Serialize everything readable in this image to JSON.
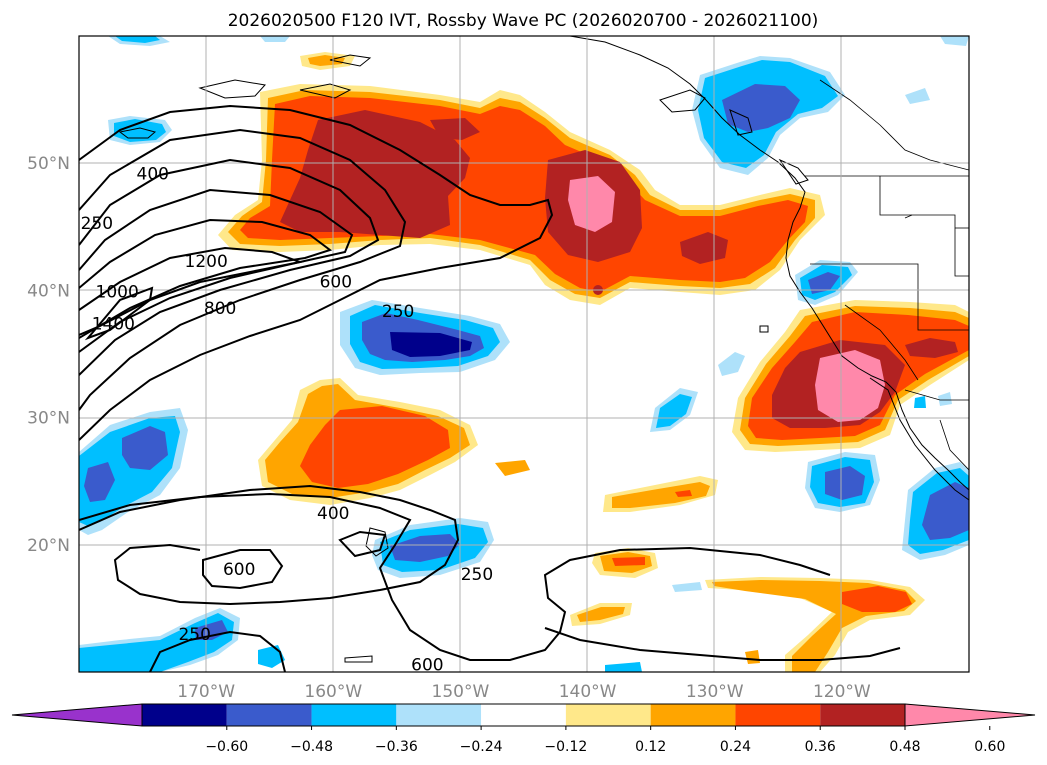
{
  "title": "2026020500 F120 IVT, Rossby Wave PC (2026020700 - 2026021100)",
  "map": {
    "lon_range": [
      -180,
      -110
    ],
    "lat_range": [
      10,
      60
    ],
    "lon_ticks": [
      {
        "lon": -170,
        "label": "170°W"
      },
      {
        "lon": -160,
        "label": "160°W"
      },
      {
        "lon": -150,
        "label": "150°W"
      },
      {
        "lon": -140,
        "label": "140°W"
      },
      {
        "lon": -130,
        "label": "130°W"
      },
      {
        "lon": -120,
        "label": "120°W"
      }
    ],
    "lat_ticks": [
      {
        "lat": 50,
        "label": "50°N"
      },
      {
        "lat": 40,
        "label": "40°N"
      },
      {
        "lat": 30,
        "label": "30°N"
      },
      {
        "lat": 20,
        "label": "20°N"
      }
    ],
    "grid": true
  },
  "contour_labels": [
    {
      "text": "250",
      "lon": -178.6,
      "lat": 45.3
    },
    {
      "text": "400",
      "lon": -174.2,
      "lat": 49.2
    },
    {
      "text": "1200",
      "lon": -170.0,
      "lat": 42.3
    },
    {
      "text": "1000",
      "lon": -177.0,
      "lat": 39.9
    },
    {
      "text": "1400",
      "lon": -177.3,
      "lat": 37.4
    },
    {
      "text": "800",
      "lon": -168.9,
      "lat": 38.6
    },
    {
      "text": "600",
      "lon": -159.8,
      "lat": 40.7
    },
    {
      "text": "250",
      "lon": -154.9,
      "lat": 38.4
    },
    {
      "text": "400",
      "lon": -160.0,
      "lat": 22.5
    },
    {
      "text": "600",
      "lon": -167.4,
      "lat": 18.1
    },
    {
      "text": "250",
      "lon": -148.7,
      "lat": 17.7
    },
    {
      "text": "250",
      "lon": -170.9,
      "lat": 13.0
    },
    {
      "text": "600",
      "lon": -152.6,
      "lat": 10.6
    }
  ],
  "colorbar": {
    "colors": [
      "#9932cc",
      "#00008b",
      "#3a5bcc",
      "#00bfff",
      "#aee1fa",
      "#ffffff",
      "#ffe88a",
      "#ffa500",
      "#ff4500",
      "#b22222",
      "#ff88aa"
    ],
    "tick_labels": [
      "−0.60",
      "−0.48",
      "−0.36",
      "−0.24",
      "−0.12",
      "0.12",
      "0.24",
      "0.36",
      "0.48",
      "0.60"
    ]
  }
}
